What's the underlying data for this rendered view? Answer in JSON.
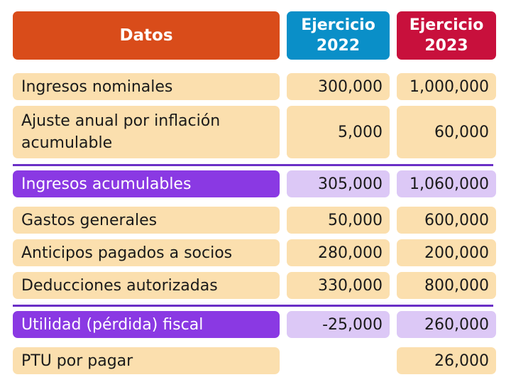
{
  "header": {
    "datos": "Datos",
    "col_2022": [
      "Ejercicio",
      "2022"
    ],
    "col_2023": [
      "Ejercicio",
      "2023"
    ]
  },
  "rows": [
    {
      "label": [
        "Ingresos nominales"
      ],
      "v2022": "300,000",
      "v2023": "1,000,000"
    },
    {
      "label": [
        "Ajuste anual por inflación",
        "acumulable"
      ],
      "v2022": "5,000",
      "v2023": "60,000"
    },
    {
      "label": [
        "Ingresos acumulables"
      ],
      "v2022": "305,000",
      "v2023": "1,060,000"
    },
    {
      "label": [
        "Gastos generales"
      ],
      "v2022": "50,000",
      "v2023": "600,000"
    },
    {
      "label": [
        "Anticipos pagados a socios"
      ],
      "v2022": "280,000",
      "v2023": "200,000"
    },
    {
      "label": [
        "Deducciones autorizadas"
      ],
      "v2022": "330,000",
      "v2023": "800,000"
    },
    {
      "label": [
        "Utilidad (pérdida) fiscal"
      ],
      "v2022": "-25,000",
      "v2023": "260,000"
    },
    {
      "label": [
        "PTU por pagar"
      ],
      "v2022": "",
      "v2023": "26,000"
    }
  ],
  "colors": {
    "datos_header": "#d94c1a",
    "header_2022": "#0a8fc8",
    "header_2023": "#c8103c",
    "row_fill": "#fbdfae",
    "highlight_label": "#8a39e3",
    "highlight_value": "#dcc8f6",
    "divider": "#6a2fc6"
  }
}
